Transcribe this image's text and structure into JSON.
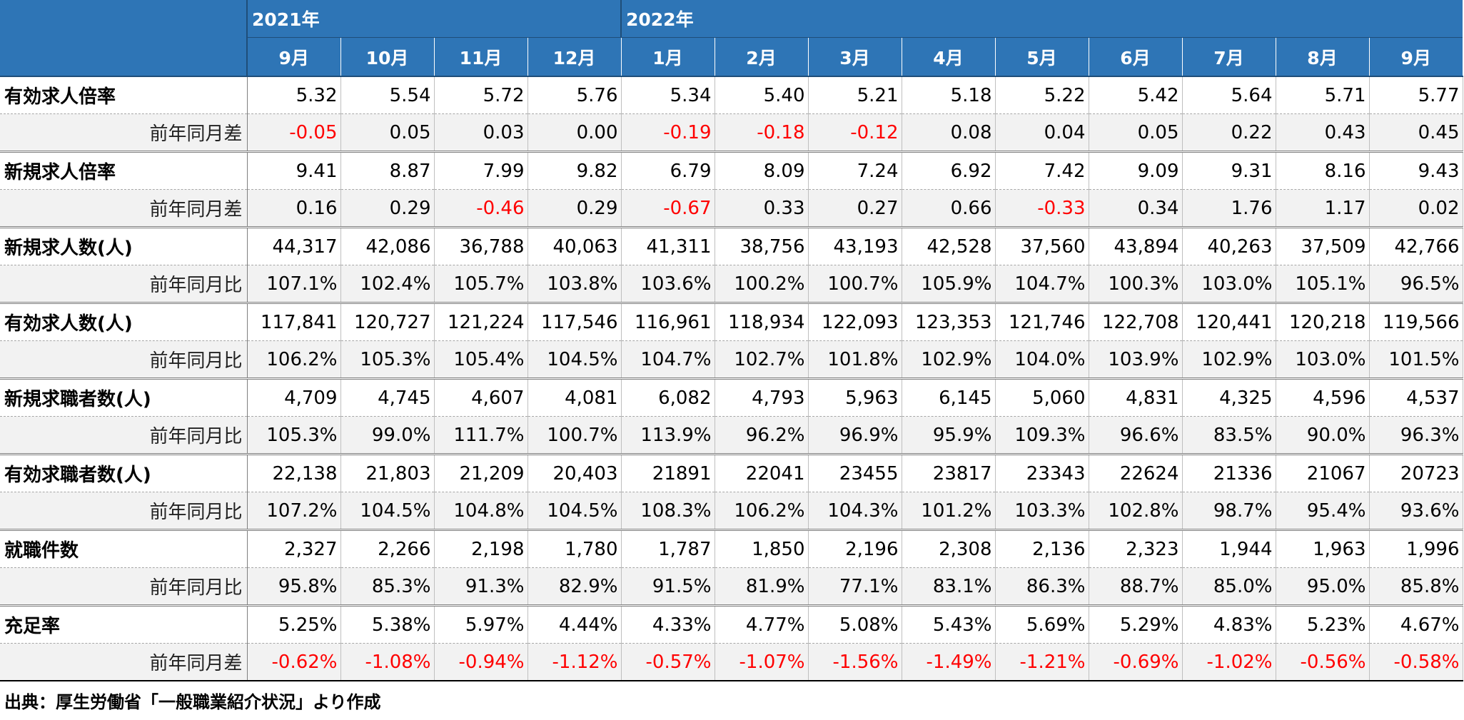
{
  "header": {
    "years": [
      {
        "label": "2021年",
        "span": 4
      },
      {
        "label": "2022年",
        "span": 9
      }
    ],
    "months": [
      "9月",
      "10月",
      "11月",
      "12月",
      "1月",
      "2月",
      "3月",
      "4月",
      "5月",
      "6月",
      "7月",
      "8月",
      "9月"
    ]
  },
  "groups": [
    {
      "label": "有効求人倍率",
      "values": [
        "5.32",
        "5.54",
        "5.72",
        "5.76",
        "5.34",
        "5.40",
        "5.21",
        "5.18",
        "5.22",
        "5.42",
        "5.64",
        "5.71",
        "5.77"
      ],
      "sub_label": "前年同月差",
      "sub_values": [
        "-0.05",
        "0.05",
        "0.03",
        "0.00",
        "-0.19",
        "-0.18",
        "-0.12",
        "0.08",
        "0.04",
        "0.05",
        "0.22",
        "0.43",
        "0.45"
      ]
    },
    {
      "label": "新規求人倍率",
      "values": [
        "9.41",
        "8.87",
        "7.99",
        "9.82",
        "6.79",
        "8.09",
        "7.24",
        "6.92",
        "7.42",
        "9.09",
        "9.31",
        "8.16",
        "9.43"
      ],
      "sub_label": "前年同月差",
      "sub_values": [
        "0.16",
        "0.29",
        "-0.46",
        "0.29",
        "-0.67",
        "0.33",
        "0.27",
        "0.66",
        "-0.33",
        "0.34",
        "1.76",
        "1.17",
        "0.02"
      ]
    },
    {
      "label": "新規求人数(人)",
      "values": [
        "44,317",
        "42,086",
        "36,788",
        "40,063",
        "41,311",
        "38,756",
        "43,193",
        "42,528",
        "37,560",
        "43,894",
        "40,263",
        "37,509",
        "42,766"
      ],
      "sub_label": "前年同月比",
      "sub_values": [
        "107.1%",
        "102.4%",
        "105.7%",
        "103.8%",
        "103.6%",
        "100.2%",
        "100.7%",
        "105.9%",
        "104.7%",
        "100.3%",
        "103.0%",
        "105.1%",
        "96.5%"
      ]
    },
    {
      "label": "有効求人数(人)",
      "values": [
        "117,841",
        "120,727",
        "121,224",
        "117,546",
        "116,961",
        "118,934",
        "122,093",
        "123,353",
        "121,746",
        "122,708",
        "120,441",
        "120,218",
        "119,566"
      ],
      "sub_label": "前年同月比",
      "sub_values": [
        "106.2%",
        "105.3%",
        "105.4%",
        "104.5%",
        "104.7%",
        "102.7%",
        "101.8%",
        "102.9%",
        "104.0%",
        "103.9%",
        "102.9%",
        "103.0%",
        "101.5%"
      ]
    },
    {
      "label": "新規求職者数(人)",
      "values": [
        "4,709",
        "4,745",
        "4,607",
        "4,081",
        "6,082",
        "4,793",
        "5,963",
        "6,145",
        "5,060",
        "4,831",
        "4,325",
        "4,596",
        "4,537"
      ],
      "sub_label": "前年同月比",
      "sub_values": [
        "105.3%",
        "99.0%",
        "111.7%",
        "100.7%",
        "113.9%",
        "96.2%",
        "96.9%",
        "95.9%",
        "109.3%",
        "96.6%",
        "83.5%",
        "90.0%",
        "96.3%"
      ]
    },
    {
      "label": "有効求職者数(人)",
      "values": [
        "22,138",
        "21,803",
        "21,209",
        "20,403",
        "21891",
        "22041",
        "23455",
        "23817",
        "23343",
        "22624",
        "21336",
        "21067",
        "20723"
      ],
      "sub_label": "前年同月比",
      "sub_values": [
        "107.2%",
        "104.5%",
        "104.8%",
        "104.5%",
        "108.3%",
        "106.2%",
        "104.3%",
        "101.2%",
        "103.3%",
        "102.8%",
        "98.7%",
        "95.4%",
        "93.6%"
      ]
    },
    {
      "label": "就職件数",
      "values": [
        "2,327",
        "2,266",
        "2,198",
        "1,780",
        "1,787",
        "1,850",
        "2,196",
        "2,308",
        "2,136",
        "2,323",
        "1,944",
        "1,963",
        "1,996"
      ],
      "sub_label": "前年同月比",
      "sub_values": [
        "95.8%",
        "85.3%",
        "91.3%",
        "82.9%",
        "91.5%",
        "81.9%",
        "77.1%",
        "83.1%",
        "86.3%",
        "88.7%",
        "85.0%",
        "95.0%",
        "85.8%"
      ]
    },
    {
      "label": "充足率",
      "values": [
        "5.25%",
        "5.38%",
        "5.97%",
        "4.44%",
        "4.33%",
        "4.77%",
        "5.08%",
        "5.43%",
        "5.69%",
        "5.29%",
        "4.83%",
        "5.23%",
        "4.67%"
      ],
      "sub_label": "前年同月差",
      "sub_values": [
        "-0.62%",
        "-1.08%",
        "-0.94%",
        "-1.12%",
        "-0.57%",
        "-1.07%",
        "-1.56%",
        "-1.49%",
        "-1.21%",
        "-0.69%",
        "-1.02%",
        "-0.56%",
        "-0.58%"
      ]
    }
  ],
  "source": "出典：厚生労働省「一般職業紹介状況」より作成",
  "colors": {
    "header_bg": "#2e75b6",
    "header_text": "#ffffff",
    "negative": "#ff0000",
    "sub_row_bg": "#f2f2f2"
  }
}
